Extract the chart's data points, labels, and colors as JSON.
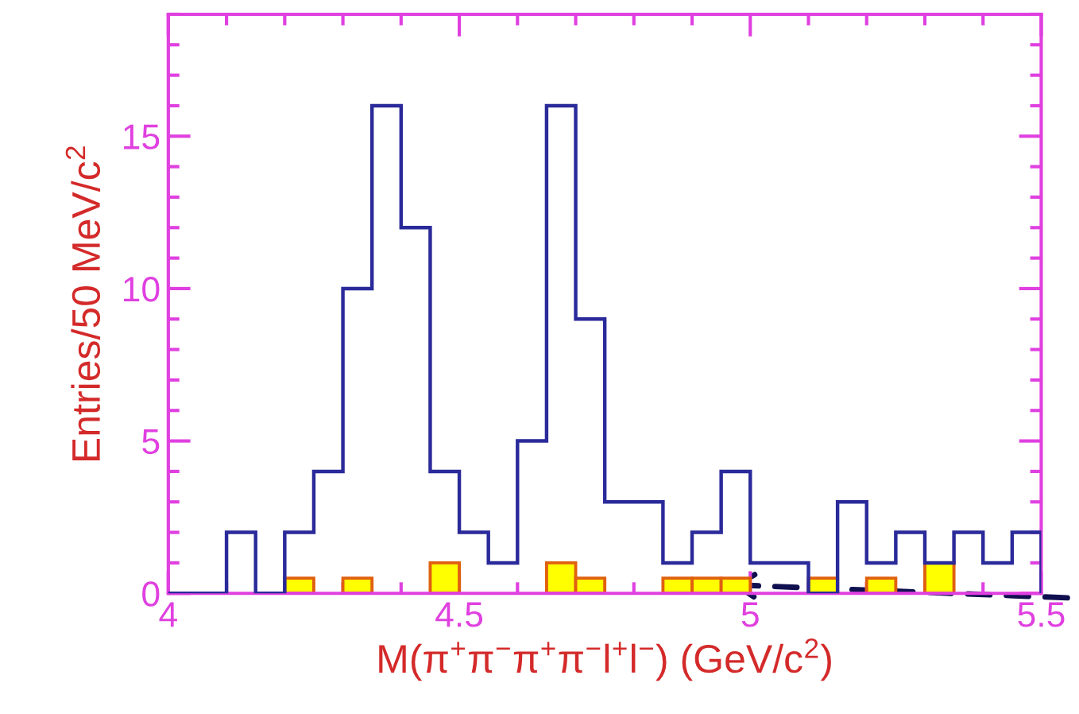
{
  "chart_data": {
    "type": "histogram",
    "xlabel": "M(π$^{+}$π$^{−}$π$^{+}$π$^{−}$l$^{+}$l$^{−}$) (GeV/c$^{2}$)",
    "ylabel": "Entries/50 MeV/c$^{2}$",
    "bins": [
      4.0,
      4.05,
      4.1,
      4.15,
      4.2,
      4.25,
      4.3,
      4.35,
      4.4,
      4.45,
      4.5,
      4.55,
      4.6,
      4.65,
      4.7,
      4.75,
      4.8,
      4.85,
      4.9,
      4.95,
      5.0,
      5.05,
      5.1,
      5.15,
      5.2,
      5.25,
      5.3,
      5.35,
      5.4,
      5.45,
      5.5
    ],
    "series": [
      {
        "color": "#2a2a9a",
        "values": [
          0,
          0,
          2,
          0,
          2,
          4,
          10,
          16,
          12,
          4,
          2,
          1,
          5,
          16,
          9,
          3,
          3,
          1,
          2,
          4,
          1,
          1,
          0,
          3,
          1,
          2,
          1,
          2,
          1,
          2
        ]
      },
      {
        "color": "#ffff00",
        "values": [
          0,
          0,
          0,
          0,
          0.5,
          0,
          0.5,
          0,
          0,
          1,
          0,
          0,
          0,
          1,
          0.5,
          0,
          0,
          0.5,
          0.5,
          0.5,
          0,
          0,
          0.5,
          0,
          0.5,
          0,
          1,
          0,
          0,
          0
        ]
      }
    ],
    "xlim": [
      4,
      5.5
    ],
    "ylim": [
      0,
      19
    ],
    "xticks": [
      4,
      4.5,
      5,
      5.5
    ],
    "yticks": [
      0,
      5,
      10,
      15
    ],
    "grid": false,
    "legend": false
  }
}
